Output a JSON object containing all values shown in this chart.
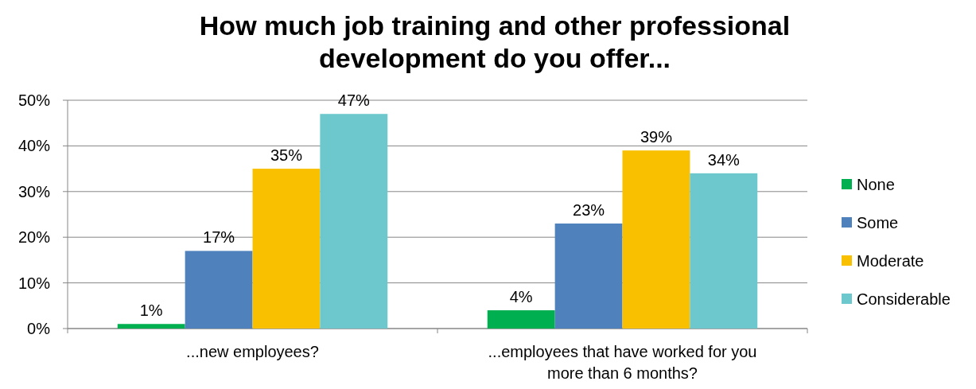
{
  "chart_data": {
    "type": "bar",
    "title": "How much job training and other professional development do you offer...",
    "categories": [
      "...new employees?",
      "...employees that have worked for you more than 6 months?"
    ],
    "series": [
      {
        "name": "None",
        "color": "#00b050",
        "values": [
          1,
          4
        ],
        "value_labels": [
          "1%",
          "4%"
        ]
      },
      {
        "name": "Some",
        "color": "#4f81bd",
        "values": [
          17,
          23
        ],
        "value_labels": [
          "17%",
          "23%"
        ]
      },
      {
        "name": "Moderate",
        "color": "#f9c000",
        "values": [
          35,
          39
        ],
        "value_labels": [
          "35%",
          "39%"
        ]
      },
      {
        "name": "Considerable",
        "color": "#6cc8cc",
        "values": [
          47,
          34
        ],
        "value_labels": [
          "47%",
          "34%"
        ]
      }
    ],
    "ylim": [
      0,
      50
    ],
    "yticks": [
      {
        "value": 0,
        "label": "0%"
      },
      {
        "value": 10,
        "label": "10%"
      },
      {
        "value": 20,
        "label": "20%"
      },
      {
        "value": 30,
        "label": "30%"
      },
      {
        "value": 40,
        "label": "40%"
      },
      {
        "value": 50,
        "label": "50%"
      }
    ],
    "grid": "y",
    "legend": "right"
  }
}
